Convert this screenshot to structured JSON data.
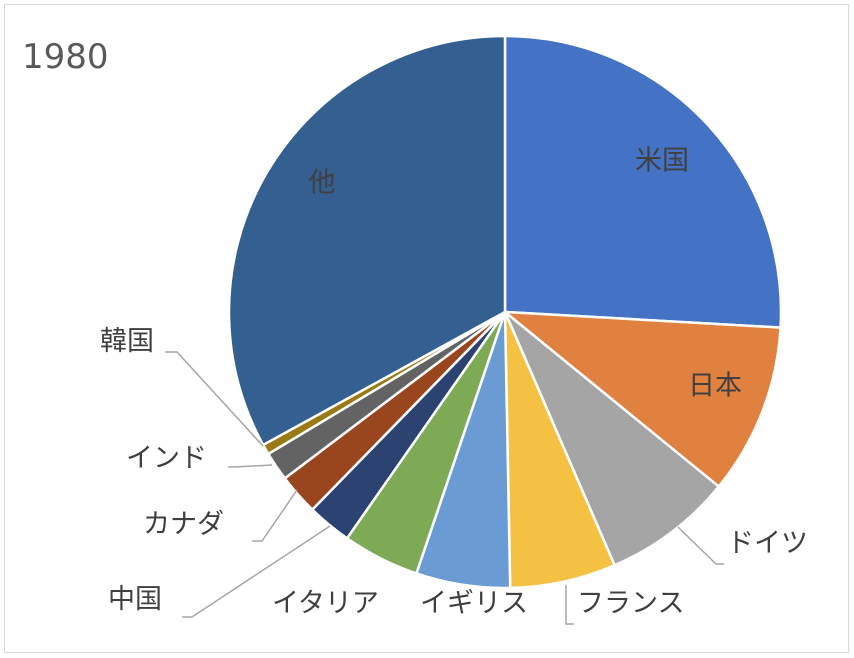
{
  "chart_data": {
    "type": "pie",
    "title": "1980",
    "slices": [
      {
        "label": "米国",
        "value": 25.9,
        "color": "#4472C4"
      },
      {
        "label": "日本",
        "value": 10.0,
        "color": "#E0813F"
      },
      {
        "label": "ドイツ",
        "value": 7.6,
        "color": "#A5A5A5"
      },
      {
        "label": "フランス",
        "value": 6.2,
        "color": "#F4C143"
      },
      {
        "label": "イギリス",
        "value": 5.5,
        "color": "#6A9BD3"
      },
      {
        "label": "イタリア",
        "value": 4.5,
        "color": "#7FAA55"
      },
      {
        "label": "中国",
        "value": 2.6,
        "color": "#2C4371"
      },
      {
        "label": "カナダ",
        "value": 2.4,
        "color": "#99451D"
      },
      {
        "label": "インド",
        "value": 1.7,
        "color": "#636363"
      },
      {
        "label": "韓国",
        "value": 0.6,
        "color": "#9A7A14"
      },
      {
        "label": "他",
        "value": 33.0,
        "color": "#345F91"
      }
    ],
    "legend": "none"
  }
}
